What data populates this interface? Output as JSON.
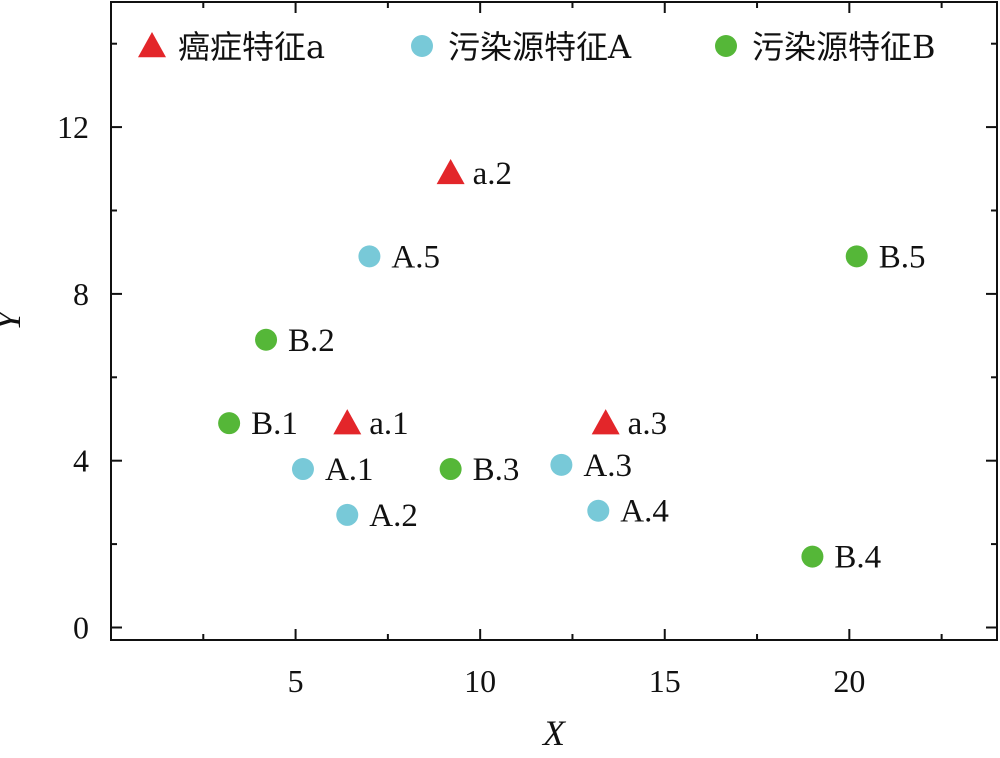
{
  "chart_data": {
    "type": "scatter",
    "xlabel": "X",
    "ylabel": "Y",
    "xlim": [
      0,
      24
    ],
    "ylim": [
      -0.3,
      15
    ],
    "x_ticks": [
      5,
      10,
      15,
      20
    ],
    "y_ticks": [
      0,
      4,
      8,
      12
    ],
    "x_minor_ticks": [
      2.5,
      7.5,
      12.5,
      17.5,
      22.5
    ],
    "y_minor_ticks": [
      2,
      6,
      10,
      14
    ],
    "grid": false,
    "legend_position": "top",
    "series": [
      {
        "name": "癌症特征a",
        "marker": "triangle",
        "color": "#e3262a",
        "points": [
          {
            "label": "a.1",
            "x": 6.4,
            "y": 4.9
          },
          {
            "label": "a.2",
            "x": 9.2,
            "y": 10.9
          },
          {
            "label": "a.3",
            "x": 13.4,
            "y": 4.9
          }
        ]
      },
      {
        "name": "污染源特征A",
        "marker": "circle",
        "color": "#78c9d8",
        "points": [
          {
            "label": "A.1",
            "x": 5.2,
            "y": 3.8
          },
          {
            "label": "A.2",
            "x": 6.4,
            "y": 2.7
          },
          {
            "label": "A.3",
            "x": 12.2,
            "y": 3.9
          },
          {
            "label": "A.4",
            "x": 13.2,
            "y": 2.8
          },
          {
            "label": "A.5",
            "x": 7.0,
            "y": 8.9
          }
        ]
      },
      {
        "name": "污染源特征B",
        "marker": "circle",
        "color": "#55b738",
        "points": [
          {
            "label": "B.1",
            "x": 3.2,
            "y": 4.9
          },
          {
            "label": "B.2",
            "x": 4.2,
            "y": 6.9
          },
          {
            "label": "B.3",
            "x": 9.2,
            "y": 3.8
          },
          {
            "label": "B.4",
            "x": 19.0,
            "y": 1.7
          },
          {
            "label": "B.5",
            "x": 20.2,
            "y": 8.9
          }
        ]
      }
    ]
  }
}
